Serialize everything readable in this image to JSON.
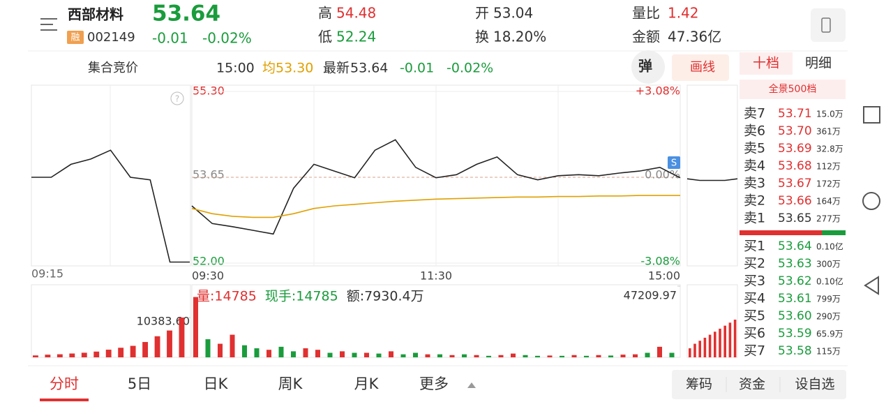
{
  "header": {
    "name": "西部材料",
    "price": "53.64",
    "badge": "融",
    "code": "002149",
    "change": "-0.01",
    "change_pct": "-0.02%",
    "stats": [
      {
        "label": "高",
        "value": "54.48",
        "color": "#e03030"
      },
      {
        "label": "低",
        "value": "52.24",
        "color": "#1a9c3c"
      },
      {
        "label": "开",
        "value": "53.04",
        "color": "#333333"
      },
      {
        "label": "换",
        "value": "18.20%",
        "color": "#333333"
      },
      {
        "label": "量比",
        "value": "1.42",
        "color": "#e03030"
      },
      {
        "label": "金额",
        "value": "47.36亿",
        "color": "#333333"
      }
    ]
  },
  "info_bar": {
    "mode": "集合竞价",
    "time": "15:00",
    "avg_label": "均",
    "avg": "53.30",
    "latest_label": "最新",
    "latest": "53.64",
    "change": "-0.01",
    "change_pct": "-0.02%",
    "popup": "弹",
    "draw": "画线"
  },
  "side_tabs": [
    "十档",
    "明细"
  ],
  "depth_link": "全景500档",
  "order_book": {
    "sell": [
      {
        "label": "卖7",
        "price": "53.71",
        "volume": "15.0万",
        "color": "#e03030"
      },
      {
        "label": "卖6",
        "price": "53.70",
        "volume": "361万",
        "color": "#e03030"
      },
      {
        "label": "卖5",
        "price": "53.69",
        "volume": "32.8万",
        "color": "#e03030"
      },
      {
        "label": "卖4",
        "price": "53.68",
        "volume": "112万",
        "color": "#e03030"
      },
      {
        "label": "卖3",
        "price": "53.67",
        "volume": "172万",
        "color": "#e03030"
      },
      {
        "label": "卖2",
        "price": "53.66",
        "volume": "164万",
        "color": "#e03030"
      },
      {
        "label": "卖1",
        "price": "53.65",
        "volume": "277万",
        "color": "#333333"
      }
    ],
    "buy": [
      {
        "label": "买1",
        "price": "53.64",
        "volume": "0.10亿",
        "color": "#1a9c3c"
      },
      {
        "label": "买2",
        "price": "53.63",
        "volume": "300万",
        "color": "#1a9c3c"
      },
      {
        "label": "买3",
        "price": "53.62",
        "volume": "0.10亿",
        "color": "#1a9c3c"
      },
      {
        "label": "买4",
        "price": "53.61",
        "volume": "799万",
        "color": "#1a9c3c"
      },
      {
        "label": "买5",
        "price": "53.60",
        "volume": "290万",
        "color": "#1a9c3c"
      },
      {
        "label": "买6",
        "price": "53.59",
        "volume": "65.9万",
        "color": "#1a9c3c"
      },
      {
        "label": "买7",
        "price": "53.58",
        "volume": "115万",
        "color": "#1a9c3c"
      }
    ]
  },
  "chart": {
    "type": "line",
    "ylim": [
      52,
      55.3
    ],
    "yticks": [
      {
        "value": 55.3,
        "label": "55.30"
      },
      {
        "value": 53.65,
        "label": "53.65"
      },
      {
        "value": 52,
        "label": "52.00"
      }
    ],
    "y2lim": [
      -3.08,
      3.08
    ],
    "y2ticks": [
      {
        "value": 3.08,
        "label": "+3.08%"
      },
      {
        "value": 0,
        "label": "0.00%"
      },
      {
        "value": -3.08,
        "label": "-3.08%"
      }
    ],
    "auction": {
      "times": [
        "09:15",
        null,
        null,
        null,
        null,
        null,
        null,
        null,
        null
      ],
      "values": [
        53.65,
        53.65,
        53.9,
        54.0,
        54.17,
        53.65,
        53.6,
        52.02,
        52.02
      ]
    },
    "times": [
      "09:30",
      null,
      null,
      null,
      null,
      null,
      null,
      null,
      null,
      null,
      null,
      null,
      "11:30",
      null,
      null,
      null,
      null,
      null,
      null,
      null,
      null,
      null,
      null,
      null,
      "15:00"
    ],
    "series": [
      {
        "color": "#222222",
        "values": [
          53.1,
          52.76,
          52.7,
          52.63,
          52.56,
          53.44,
          53.9,
          53.77,
          53.64,
          54.17,
          54.37,
          53.84,
          53.64,
          53.7,
          53.9,
          54.04,
          53.7,
          53.6,
          53.68,
          53.7,
          53.68,
          53.73,
          53.77,
          53.84,
          53.64
        ]
      },
      {
        "color": "#e0a000",
        "values": [
          53.05,
          52.95,
          52.9,
          52.88,
          52.88,
          52.95,
          53.05,
          53.1,
          53.13,
          53.16,
          53.19,
          53.21,
          53.23,
          53.24,
          53.25,
          53.26,
          53.27,
          53.27,
          53.28,
          53.28,
          53.29,
          53.29,
          53.3,
          53.3,
          53.3
        ]
      }
    ],
    "after_hours": {
      "values": [
        53.62,
        53.59,
        53.59,
        53.59,
        53.62
      ]
    },
    "volume": {
      "ylim": [
        0,
        47209.97
      ],
      "yticks": [
        {
          "value": 47209.97,
          "label": "47209.97"
        }
      ],
      "readout": [
        {
          "text": "量:14785",
          "color": "#e03030"
        },
        {
          "text": "现手:14785",
          "color": "#1a9c3c"
        },
        {
          "text": "额:7930.4万",
          "color": "#333333"
        }
      ],
      "values": [
        40000,
        12000,
        9000,
        15000,
        8000,
        6000,
        5000,
        7000,
        4000,
        6000,
        5000,
        3000,
        4000,
        3000,
        3000,
        2500,
        4000,
        2000,
        3000,
        2000,
        2000,
        1500,
        2000,
        1500,
        1000,
        1500,
        2500,
        1500,
        1000,
        1200,
        1000,
        1500,
        1000,
        1500,
        1200,
        1800,
        2000,
        3000,
        7000,
        3000
      ],
      "colors": [
        "#e03030",
        "#1a9c3c",
        "#e03030",
        "#e03030",
        "#1a9c3c",
        "#1a9c3c",
        "#e03030",
        "#1a9c3c",
        "#1a9c3c",
        "#e03030",
        "#e03030",
        "#1a9c3c",
        "#e03030",
        "#1a9c3c",
        "#e03030",
        "#1a9c3c",
        "#e03030",
        "#1a9c3c",
        "#1a9c3c",
        "#e03030",
        "#1a9c3c",
        "#e03030",
        "#1a9c3c",
        "#e03030",
        "#1a9c3c",
        "#e03030",
        "#e03030",
        "#1a9c3c",
        "#1a9c3c",
        "#e03030",
        "#1a9c3c",
        "#e03030",
        "#1a9c3c",
        "#e03030",
        "#1a9c3c",
        "#e03030",
        "#e03030",
        "#1a9c3c",
        "#e03030",
        "#1a9c3c"
      ],
      "auction_max": {
        "value": 10383.6,
        "label": "10383.60"
      },
      "auction_values": [
        500,
        700,
        800,
        1000,
        1200,
        1500,
        2000,
        2500,
        3000,
        4000,
        5500,
        7000,
        10383.6
      ],
      "after_hours_values": [
        6000,
        9000,
        11000,
        13000,
        15000,
        17000,
        19000,
        21000,
        23000,
        25000
      ]
    }
  },
  "tabs": [
    "分时",
    "5日",
    "日K",
    "周K",
    "月K",
    "更多"
  ],
  "buttons": [
    "筹码",
    "资金",
    "设自选"
  ]
}
